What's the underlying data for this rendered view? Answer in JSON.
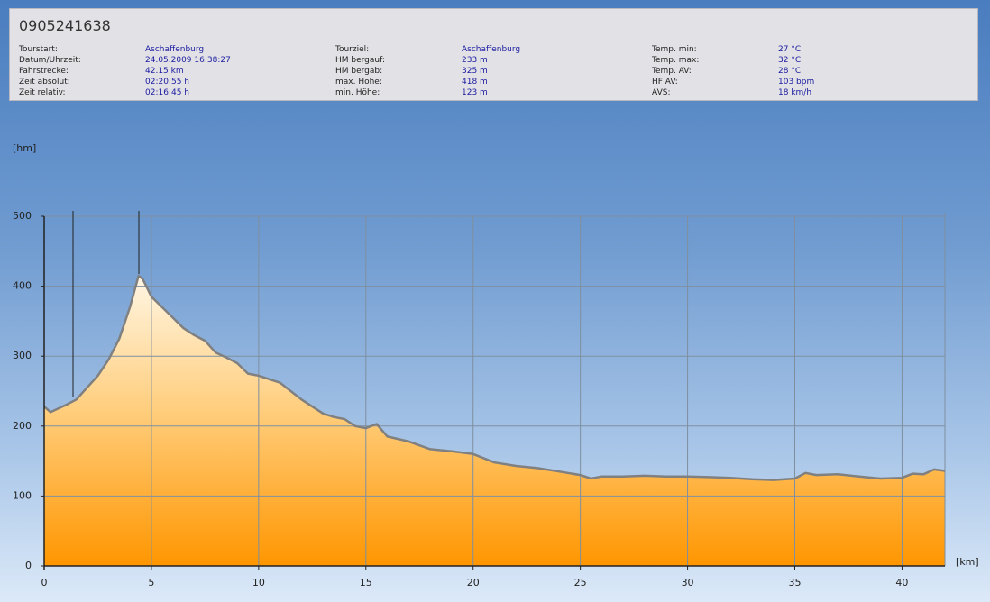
{
  "header": {
    "title": "0905241638",
    "columns": [
      [
        {
          "label": "Tourstart:",
          "value": "Aschaffenburg"
        },
        {
          "label": "Datum/Uhrzeit:",
          "value": "24.05.2009 16:38:27"
        },
        {
          "label": "Fahrstrecke:",
          "value": "42.15 km"
        },
        {
          "label": "Zeit absolut:",
          "value": "02:20:55 h"
        },
        {
          "label": "Zeit relativ:",
          "value": "02:16:45 h"
        }
      ],
      [
        {
          "label": "Tourziel:",
          "value": "Aschaffenburg"
        },
        {
          "label": "HM bergauf:",
          "value": "233 m"
        },
        {
          "label": "HM bergab:",
          "value": "325 m"
        },
        {
          "label": "max. Höhe:",
          "value": "418 m"
        },
        {
          "label": "min. Höhe:",
          "value": "123 m"
        }
      ],
      [
        {
          "label": "Temp. min:",
          "value": "27 °C"
        },
        {
          "label": "Temp. max:",
          "value": "32 °C"
        },
        {
          "label": "Temp. AV:",
          "value": "28 °C"
        },
        {
          "label": "HF AV:",
          "value": "103 bpm"
        },
        {
          "label": "AVS:",
          "value": "18 km/h"
        }
      ]
    ]
  },
  "chart_data": {
    "type": "area",
    "y_label": "[hm]",
    "x_label": "[km]",
    "x": [
      0,
      0.3,
      1,
      1.5,
      2,
      2.5,
      3,
      3.5,
      4,
      4.4,
      4.6,
      5,
      5.5,
      6,
      6.5,
      7,
      7.5,
      8,
      8.5,
      9,
      9.5,
      10,
      11,
      11.5,
      12,
      12.5,
      13,
      13.5,
      14,
      14.5,
      15,
      15.5,
      16,
      17,
      18,
      19,
      20,
      21,
      22,
      23,
      24,
      25,
      25.5,
      26,
      27,
      28,
      29,
      30,
      31,
      32,
      33,
      34,
      35,
      35.5,
      36,
      37,
      38,
      39,
      40,
      40.5,
      41,
      41.5,
      42
    ],
    "values": [
      228,
      220,
      230,
      238,
      255,
      272,
      295,
      325,
      370,
      415,
      410,
      385,
      370,
      355,
      340,
      330,
      322,
      305,
      298,
      290,
      275,
      272,
      262,
      250,
      238,
      228,
      218,
      213,
      210,
      200,
      197,
      203,
      185,
      178,
      167,
      164,
      160,
      148,
      143,
      140,
      135,
      130,
      125,
      128,
      128,
      129,
      128,
      128,
      127,
      126,
      124,
      123,
      125,
      133,
      130,
      131,
      128,
      125,
      126,
      132,
      131,
      138,
      136
    ],
    "xlim": [
      0,
      42
    ],
    "ylim": [
      0,
      500
    ],
    "xticks": [
      0,
      5,
      10,
      15,
      20,
      25,
      30,
      35,
      40
    ],
    "yticks": [
      0,
      100,
      200,
      300,
      400,
      500
    ],
    "grid": true,
    "color": "#808080"
  }
}
